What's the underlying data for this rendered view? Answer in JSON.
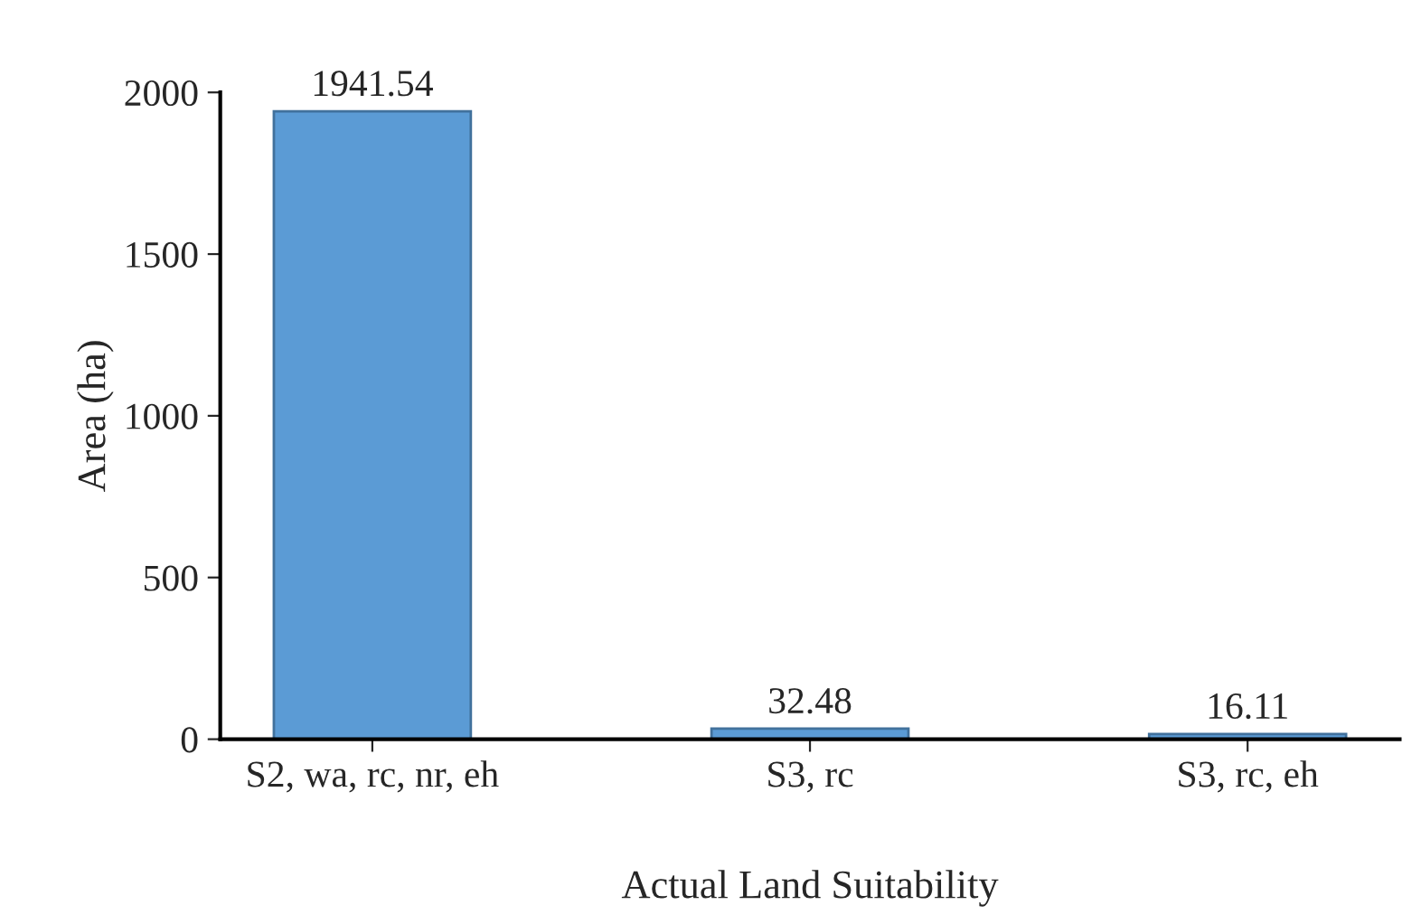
{
  "chart_data": {
    "type": "bar",
    "xlabel": "Actual Land Suitability",
    "ylabel": "Area (ha)",
    "categories": [
      "S2, wa, rc, nr, eh",
      "S3, rc",
      "S3, rc, eh"
    ],
    "values": [
      1941.54,
      32.48,
      16.11
    ],
    "color": "#5b9bd5",
    "ylim": [
      0,
      2000
    ],
    "yticks": [
      0,
      500,
      1000,
      1500,
      2000
    ],
    "data_labels": true,
    "grid": false,
    "legend": false
  }
}
